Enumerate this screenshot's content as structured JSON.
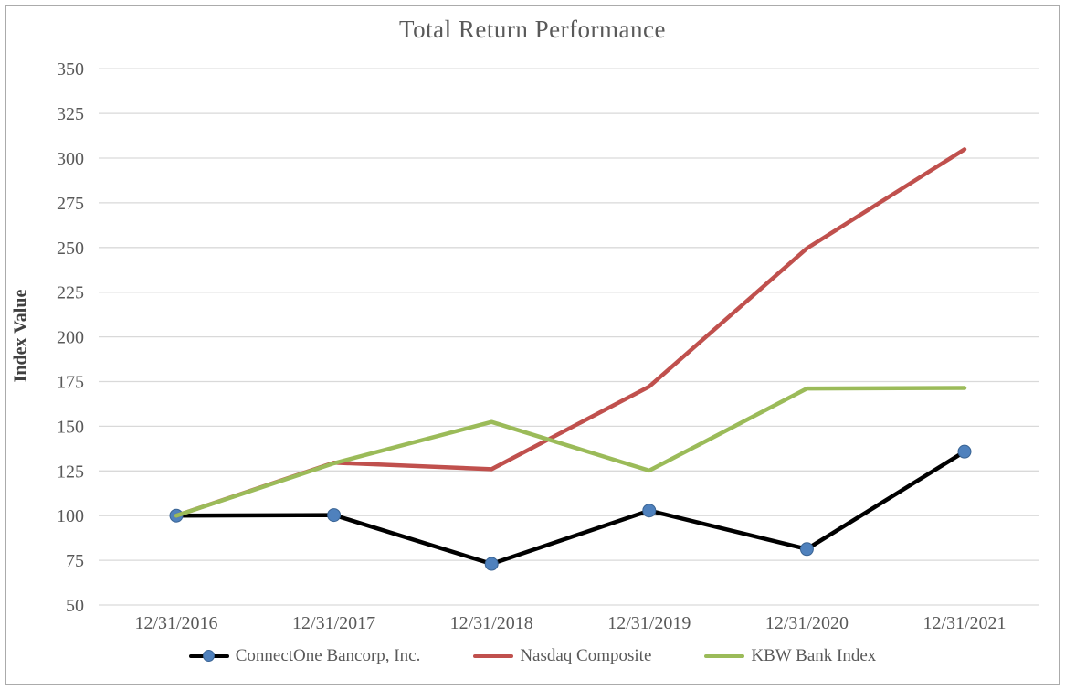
{
  "chart_data": {
    "type": "line",
    "title": "Total Return Performance",
    "xlabel": "",
    "ylabel": "Index Value",
    "ylim": [
      50,
      350
    ],
    "yticks": [
      350,
      325,
      300,
      275,
      250,
      225,
      200,
      175,
      150,
      125,
      100,
      75,
      50
    ],
    "grid": true,
    "legend_position": "bottom",
    "categories": [
      "12/31/2016",
      "12/31/2017",
      "12/31/2018",
      "12/31/2019",
      "12/31/2020",
      "12/31/2021"
    ],
    "series": [
      {
        "name": "ConnectOne Bancorp, Inc.",
        "color": "#000000",
        "marker": "circle",
        "marker_color": "#4f81bd",
        "marker_edge_color": "#3a6494",
        "values": [
          100,
          100.3,
          73.0,
          102.8,
          81.3,
          135.8
        ]
      },
      {
        "name": "Nasdaq Composite",
        "color": "#c0504d",
        "marker": "none",
        "values": [
          100,
          129.6,
          126.0,
          172.2,
          249.5,
          304.9
        ]
      },
      {
        "name": "KBW Bank Index",
        "color": "#9bbb59",
        "marker": "none",
        "values": [
          100,
          129.3,
          152.4,
          125.2,
          171.1,
          171.4
        ]
      }
    ],
    "colors": {
      "gridline": "#d9d9d9",
      "axis_text": "#595959",
      "title_text": "#595959",
      "frame_border": "#ababab",
      "background": "#ffffff"
    }
  }
}
